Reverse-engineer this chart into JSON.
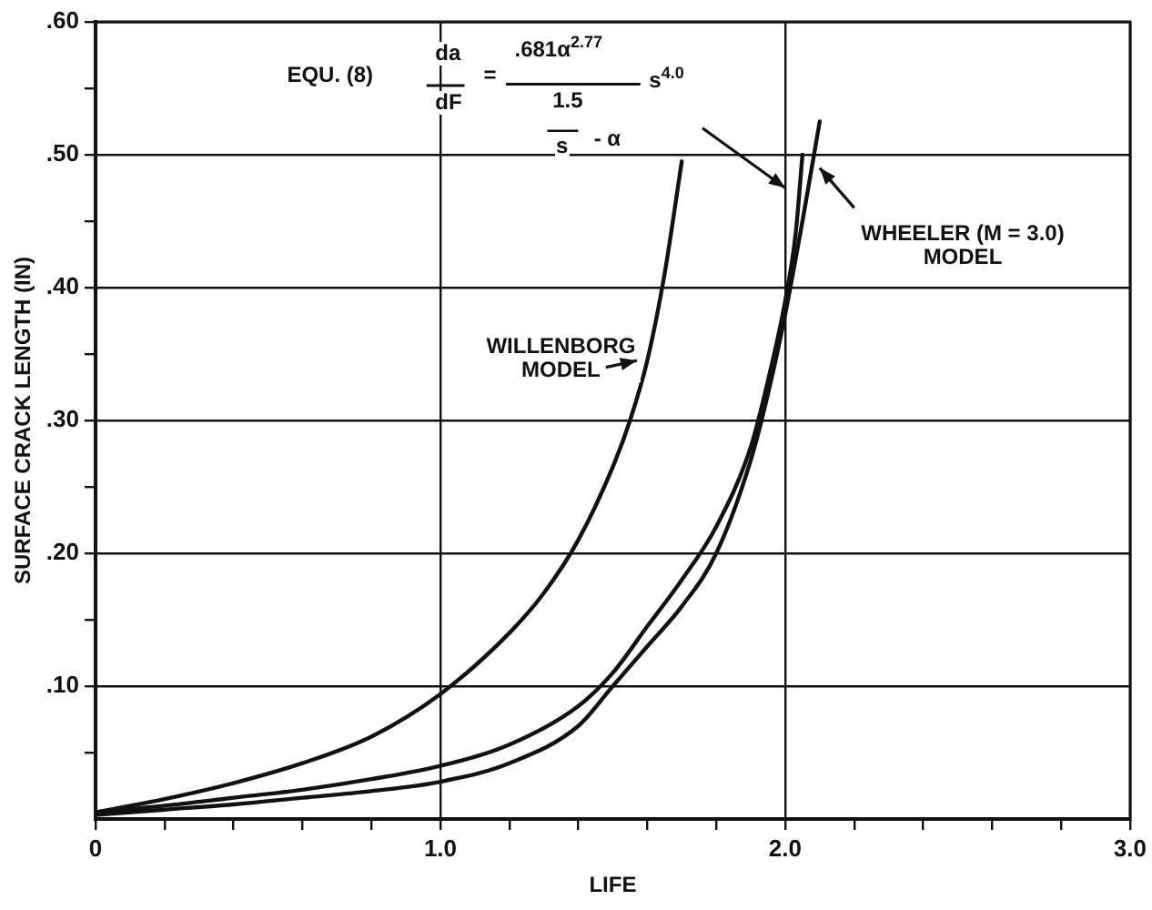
{
  "chart_data": {
    "type": "line",
    "xlabel": "LIFE",
    "ylabel": "SURFACE CRACK LENGTH (IN)",
    "annotations": [
      "EQU. (8)",
      "da",
      "dF",
      "=",
      ".681α$^{2.77}$",
      "1.5",
      "s",
      "- α",
      "s$^{4.0}$"
    ],
    "xlim": [
      0,
      3
    ],
    "ylim": [
      0,
      0.6
    ],
    "xticks": [
      0,
      {
        "value": 0.2,
        "label": null
      },
      {
        "value": 0.4,
        "label": null
      },
      {
        "value": 0.6,
        "label": null
      },
      {
        "value": 0.8,
        "label": null
      },
      {
        "value": 1,
        "label": "1.0"
      },
      {
        "value": 1.2,
        "label": null
      },
      {
        "value": 1.4,
        "label": null
      },
      {
        "value": 1.6,
        "label": null
      },
      {
        "value": 1.8,
        "label": null
      },
      {
        "value": 2,
        "label": "2.0"
      },
      {
        "value": 2.2,
        "label": null
      },
      {
        "value": 2.4,
        "label": null
      },
      {
        "value": 2.6,
        "label": null
      },
      {
        "value": 2.8,
        "label": null
      },
      {
        "value": 3,
        "label": "3.0"
      }
    ],
    "yticks": [
      {
        "value": 0.05,
        "label": null
      },
      {
        "value": 0.1,
        "label": ".10"
      },
      {
        "value": 0.15,
        "label": null
      },
      {
        "value": 0.2,
        "label": ".20"
      },
      {
        "value": 0.25,
        "label": null
      },
      {
        "value": 0.3,
        "label": ".30"
      },
      {
        "value": 0.35,
        "label": null
      },
      {
        "value": 0.4,
        "label": ".40"
      },
      {
        "value": 0.45,
        "label": null
      },
      {
        "value": 0.5,
        "label": ".50"
      },
      {
        "value": 0.55,
        "label": null
      },
      {
        "value": 0.6,
        "label": ".60"
      }
    ],
    "grid": true,
    "legend": false,
    "marker": "none",
    "line_style": "solid",
    "series": [
      {
        "color": "#111111",
        "x": [
          0,
          0.2,
          0.4,
          0.6,
          0.8,
          1.0,
          1.2,
          1.4,
          1.5,
          1.6,
          1.7,
          1.8,
          1.9,
          1.95,
          2.0,
          2.03,
          2.05
        ],
        "values": [
          0.005,
          0.01,
          0.016,
          0.022,
          0.03,
          0.04,
          0.056,
          0.085,
          0.11,
          0.145,
          0.18,
          0.22,
          0.28,
          0.33,
          0.39,
          0.44,
          0.5
        ]
      },
      {
        "name": "WILLENBORG MODEL",
        "color": "#111111",
        "x": [
          0,
          0.2,
          0.4,
          0.6,
          0.8,
          1.0,
          1.2,
          1.3,
          1.4,
          1.5,
          1.55,
          1.6,
          1.65,
          1.7
        ],
        "values": [
          0.005,
          0.015,
          0.027,
          0.042,
          0.062,
          0.094,
          0.14,
          0.17,
          0.21,
          0.265,
          0.3,
          0.345,
          0.41,
          0.495
        ]
      },
      {
        "name": "WHEELER (M = 3.0) MODEL",
        "color": "#111111",
        "x": [
          0,
          0.2,
          0.4,
          0.6,
          0.8,
          1.0,
          1.2,
          1.4,
          1.5,
          1.6,
          1.7,
          1.8,
          1.9,
          1.95,
          2.0,
          2.05,
          2.1
        ],
        "values": [
          0.003,
          0.007,
          0.011,
          0.016,
          0.021,
          0.028,
          0.042,
          0.07,
          0.1,
          0.13,
          0.16,
          0.2,
          0.27,
          0.32,
          0.38,
          0.45,
          0.525
        ]
      }
    ]
  }
}
